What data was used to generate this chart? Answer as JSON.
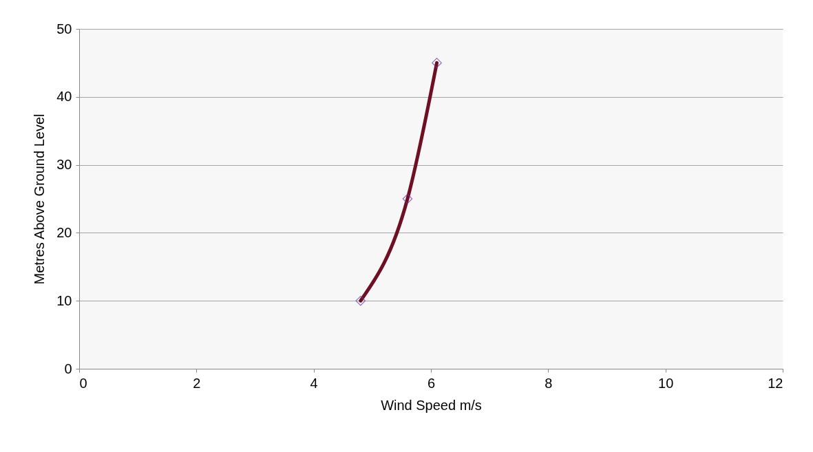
{
  "chart_data": {
    "type": "scatter",
    "xlabel": "Wind Speed m/s",
    "ylabel": "Metres Above Ground Level",
    "xlim": [
      0,
      12
    ],
    "xticks": [
      0,
      2,
      4,
      6,
      8,
      10,
      12
    ],
    "ylim": [
      0,
      50
    ],
    "yticks": [
      0,
      10,
      20,
      30,
      40,
      50
    ],
    "grid": "y",
    "series": [
      {
        "type": "line",
        "color": "#6e0f24",
        "x": [
          4.8,
          5.6,
          6.1
        ],
        "values": [
          10,
          25,
          45
        ],
        "marker": "none"
      },
      {
        "color": "#7030a0",
        "x": [
          4.8,
          5.6,
          6.1
        ],
        "values": [
          10,
          25,
          45
        ],
        "marker": "diamond"
      }
    ]
  }
}
